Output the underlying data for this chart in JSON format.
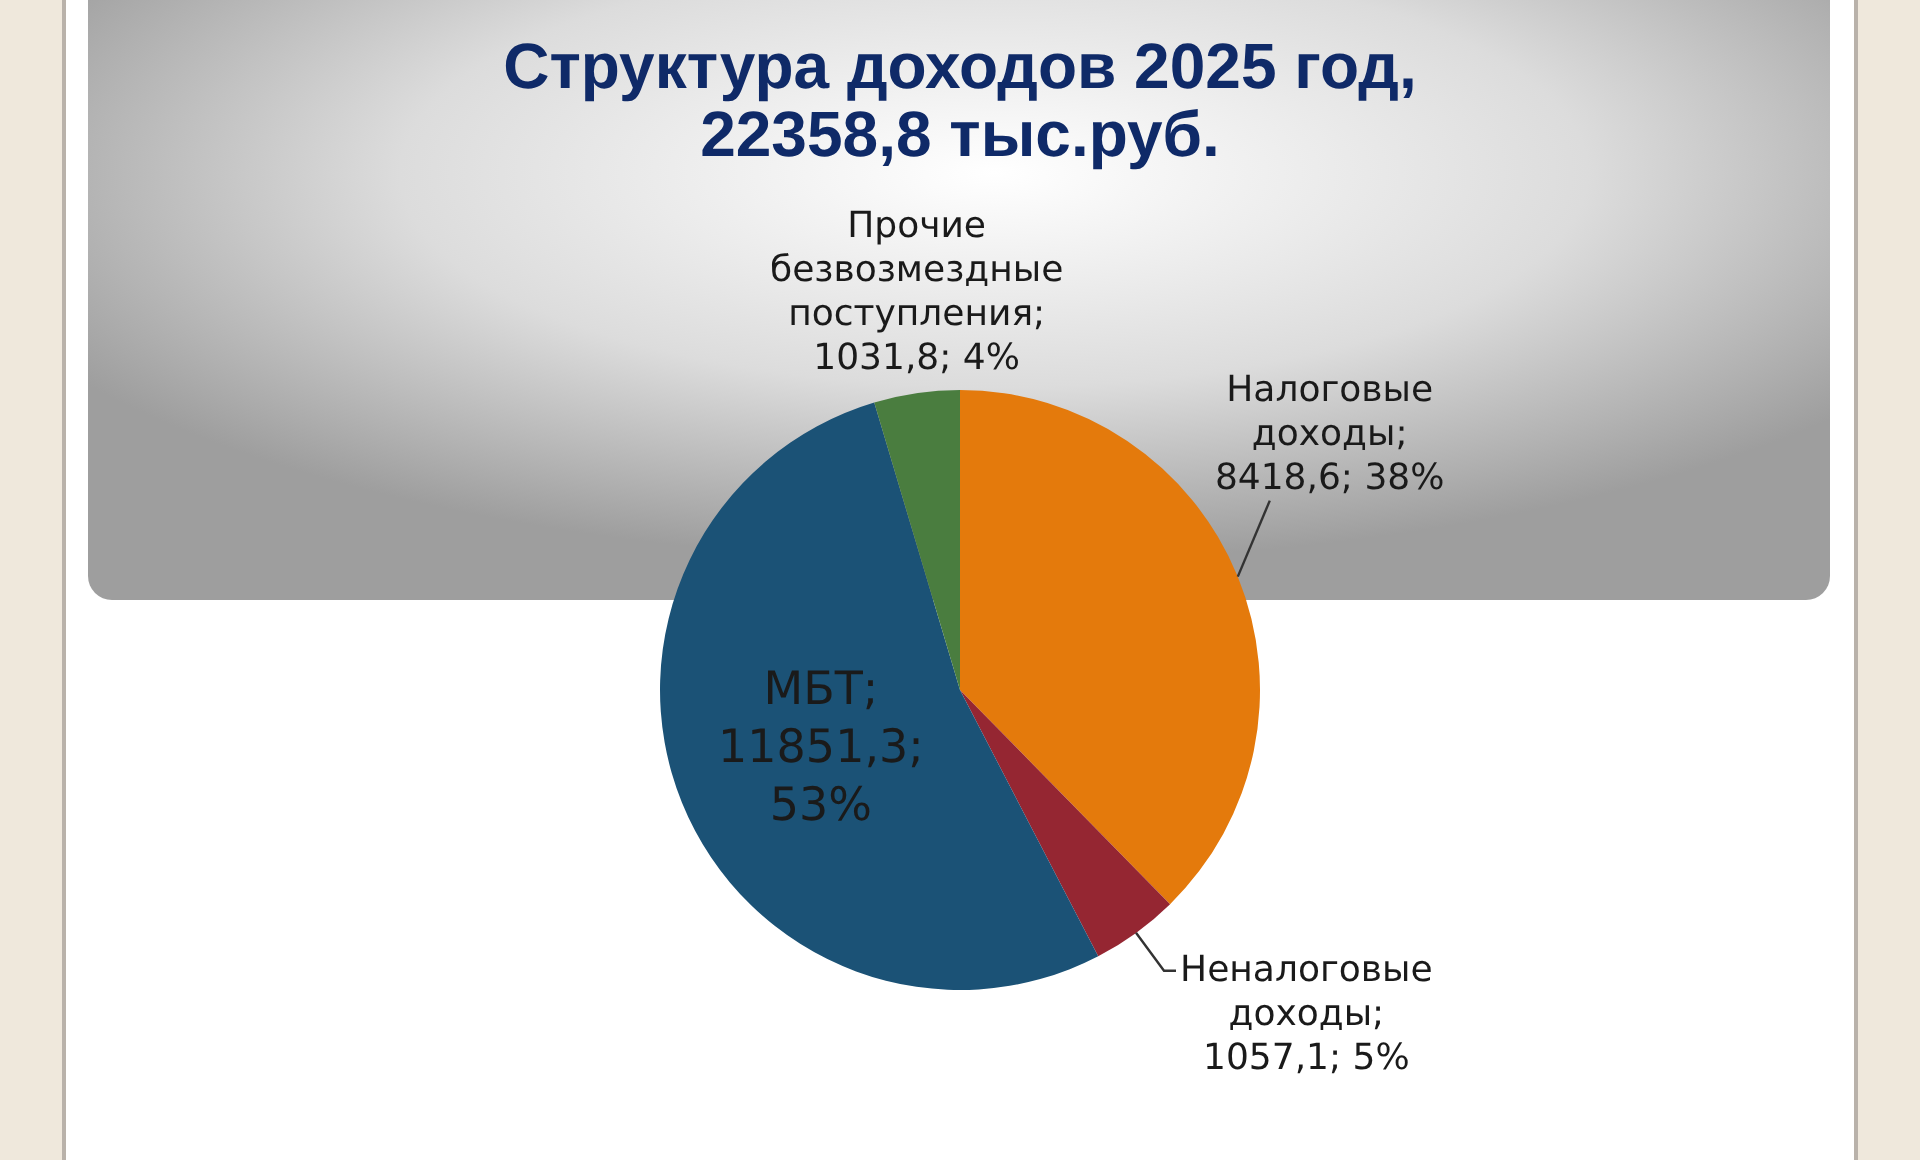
{
  "chart_data": {
    "type": "pie",
    "title": "Структура доходов 2025 год,\n22358,8 тыс.руб.",
    "categories": [
      "Налоговые доходы",
      "Неналоговые доходы",
      "МБТ",
      "Прочие безвозмездные поступления"
    ],
    "values": [
      8418.6,
      1057.1,
      11851.3,
      1031.8
    ],
    "colors": [
      "#e47a0c",
      "#952632",
      "#1b5276",
      "#4a7d3f"
    ],
    "value_labels": [
      "; 8418,6; 38%",
      "; 1057,1; 5%",
      "; 11851,3; 53%",
      "; 1031,8; 4%"
    ]
  }
}
